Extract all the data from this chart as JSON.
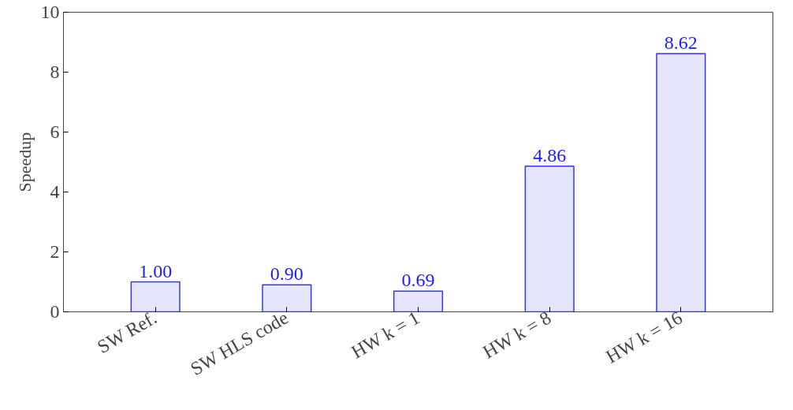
{
  "chart_data": {
    "type": "bar",
    "ylabel": "Speedup",
    "categories": [
      "SW Ref.",
      "SW HLS code",
      "HW k = 1",
      "HW k = 8",
      "HW k = 16"
    ],
    "values": [
      1.0,
      0.9,
      0.69,
      4.86,
      8.62
    ],
    "value_labels": [
      "1.00",
      "0.90",
      "0.69",
      "4.86",
      "8.62"
    ],
    "color": "#e5e5fb",
    "ylim": [
      0,
      10
    ],
    "yticks": [
      0,
      2,
      4,
      6,
      8,
      10
    ],
    "grid": false
  }
}
